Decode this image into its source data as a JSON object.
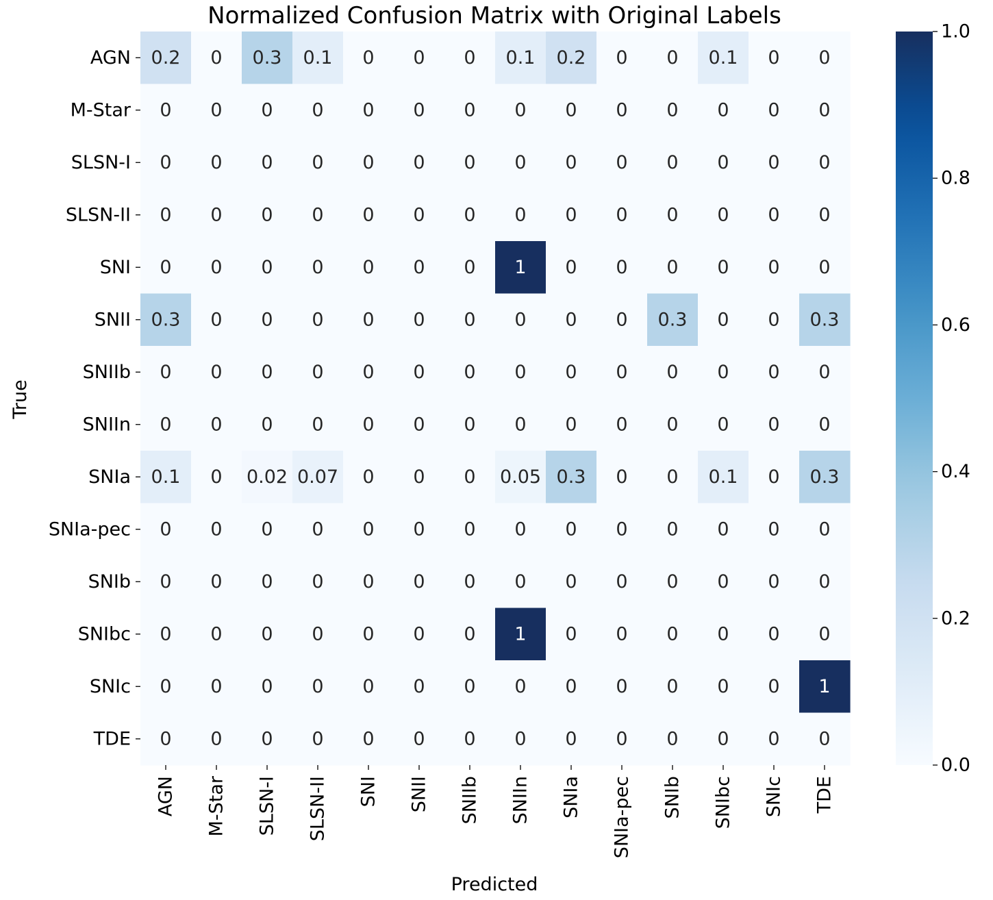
{
  "chart_data": {
    "type": "heatmap",
    "title": "Normalized Confusion Matrix with Original Labels",
    "xlabel": "Predicted",
    "ylabel": "True",
    "x_categories": [
      "AGN",
      "M-Star",
      "SLSN-I",
      "SLSN-II",
      "SNI",
      "SNII",
      "SNIIb",
      "SNIIn",
      "SNIa",
      "SNIa-pec",
      "SNIb",
      "SNIbc",
      "SNIc",
      "TDE"
    ],
    "y_categories": [
      "AGN",
      "M-Star",
      "SLSN-I",
      "SLSN-II",
      "SNI",
      "SNII",
      "SNIIb",
      "SNIIn",
      "SNIa",
      "SNIa-pec",
      "SNIb",
      "SNIbc",
      "SNIc",
      "TDE"
    ],
    "values": [
      [
        0.2,
        0,
        0.3,
        0.1,
        0,
        0,
        0,
        0.1,
        0.2,
        0,
        0,
        0.1,
        0,
        0
      ],
      [
        0,
        0,
        0,
        0,
        0,
        0,
        0,
        0,
        0,
        0,
        0,
        0,
        0,
        0
      ],
      [
        0,
        0,
        0,
        0,
        0,
        0,
        0,
        0,
        0,
        0,
        0,
        0,
        0,
        0
      ],
      [
        0,
        0,
        0,
        0,
        0,
        0,
        0,
        0,
        0,
        0,
        0,
        0,
        0,
        0
      ],
      [
        0,
        0,
        0,
        0,
        0,
        0,
        0,
        1,
        0,
        0,
        0,
        0,
        0,
        0
      ],
      [
        0.3,
        0,
        0,
        0,
        0,
        0,
        0,
        0,
        0,
        0,
        0.3,
        0,
        0,
        0.3
      ],
      [
        0,
        0,
        0,
        0,
        0,
        0,
        0,
        0,
        0,
        0,
        0,
        0,
        0,
        0
      ],
      [
        0,
        0,
        0,
        0,
        0,
        0,
        0,
        0,
        0,
        0,
        0,
        0,
        0,
        0
      ],
      [
        0.1,
        0,
        0.02,
        0.07,
        0,
        0,
        0,
        0.05,
        0.3,
        0,
        0,
        0.1,
        0,
        0.3
      ],
      [
        0,
        0,
        0,
        0,
        0,
        0,
        0,
        0,
        0,
        0,
        0,
        0,
        0,
        0
      ],
      [
        0,
        0,
        0,
        0,
        0,
        0,
        0,
        0,
        0,
        0,
        0,
        0,
        0,
        0
      ],
      [
        0,
        0,
        0,
        0,
        0,
        0,
        0,
        1,
        0,
        0,
        0,
        0,
        0,
        0
      ],
      [
        0,
        0,
        0,
        0,
        0,
        0,
        0,
        0,
        0,
        0,
        0,
        0,
        0,
        1
      ],
      [
        0,
        0,
        0,
        0,
        0,
        0,
        0,
        0,
        0,
        0,
        0,
        0,
        0,
        0
      ]
    ],
    "cell_labels": [
      [
        "0.2",
        "0",
        "0.3",
        "0.1",
        "0",
        "0",
        "0",
        "0.1",
        "0.2",
        "0",
        "0",
        "0.1",
        "0",
        "0"
      ],
      [
        "0",
        "0",
        "0",
        "0",
        "0",
        "0",
        "0",
        "0",
        "0",
        "0",
        "0",
        "0",
        "0",
        "0"
      ],
      [
        "0",
        "0",
        "0",
        "0",
        "0",
        "0",
        "0",
        "0",
        "0",
        "0",
        "0",
        "0",
        "0",
        "0"
      ],
      [
        "0",
        "0",
        "0",
        "0",
        "0",
        "0",
        "0",
        "0",
        "0",
        "0",
        "0",
        "0",
        "0",
        "0"
      ],
      [
        "0",
        "0",
        "0",
        "0",
        "0",
        "0",
        "0",
        "1",
        "0",
        "0",
        "0",
        "0",
        "0",
        "0"
      ],
      [
        "0.3",
        "0",
        "0",
        "0",
        "0",
        "0",
        "0",
        "0",
        "0",
        "0",
        "0.3",
        "0",
        "0",
        "0.3"
      ],
      [
        "0",
        "0",
        "0",
        "0",
        "0",
        "0",
        "0",
        "0",
        "0",
        "0",
        "0",
        "0",
        "0",
        "0"
      ],
      [
        "0",
        "0",
        "0",
        "0",
        "0",
        "0",
        "0",
        "0",
        "0",
        "0",
        "0",
        "0",
        "0",
        "0"
      ],
      [
        "0.1",
        "0",
        "0.02",
        "0.07",
        "0",
        "0",
        "0",
        "0.05",
        "0.3",
        "0",
        "0",
        "0.1",
        "0",
        "0.3"
      ],
      [
        "0",
        "0",
        "0",
        "0",
        "0",
        "0",
        "0",
        "0",
        "0",
        "0",
        "0",
        "0",
        "0",
        "0"
      ],
      [
        "0",
        "0",
        "0",
        "0",
        "0",
        "0",
        "0",
        "0",
        "0",
        "0",
        "0",
        "0",
        "0",
        "0"
      ],
      [
        "0",
        "0",
        "0",
        "0",
        "0",
        "0",
        "0",
        "1",
        "0",
        "0",
        "0",
        "0",
        "0",
        "0"
      ],
      [
        "0",
        "0",
        "0",
        "0",
        "0",
        "0",
        "0",
        "0",
        "0",
        "0",
        "0",
        "0",
        "0",
        "1"
      ],
      [
        "0",
        "0",
        "0",
        "0",
        "0",
        "0",
        "0",
        "0",
        "0",
        "0",
        "0",
        "0",
        "0",
        "0"
      ]
    ],
    "colorbar": {
      "range": [
        0.0,
        1.0
      ],
      "ticks": [
        0.0,
        0.2,
        0.4,
        0.6,
        0.8,
        1.0
      ],
      "tick_labels": [
        "0.0",
        "0.2",
        "0.4",
        "0.6",
        "0.8",
        "1.0"
      ]
    },
    "colormap": "Blues",
    "colors": {
      "min": "#f7fbff",
      "max": "#172f5f",
      "text_dark": "#262626",
      "text_light": "#ffffff"
    }
  }
}
